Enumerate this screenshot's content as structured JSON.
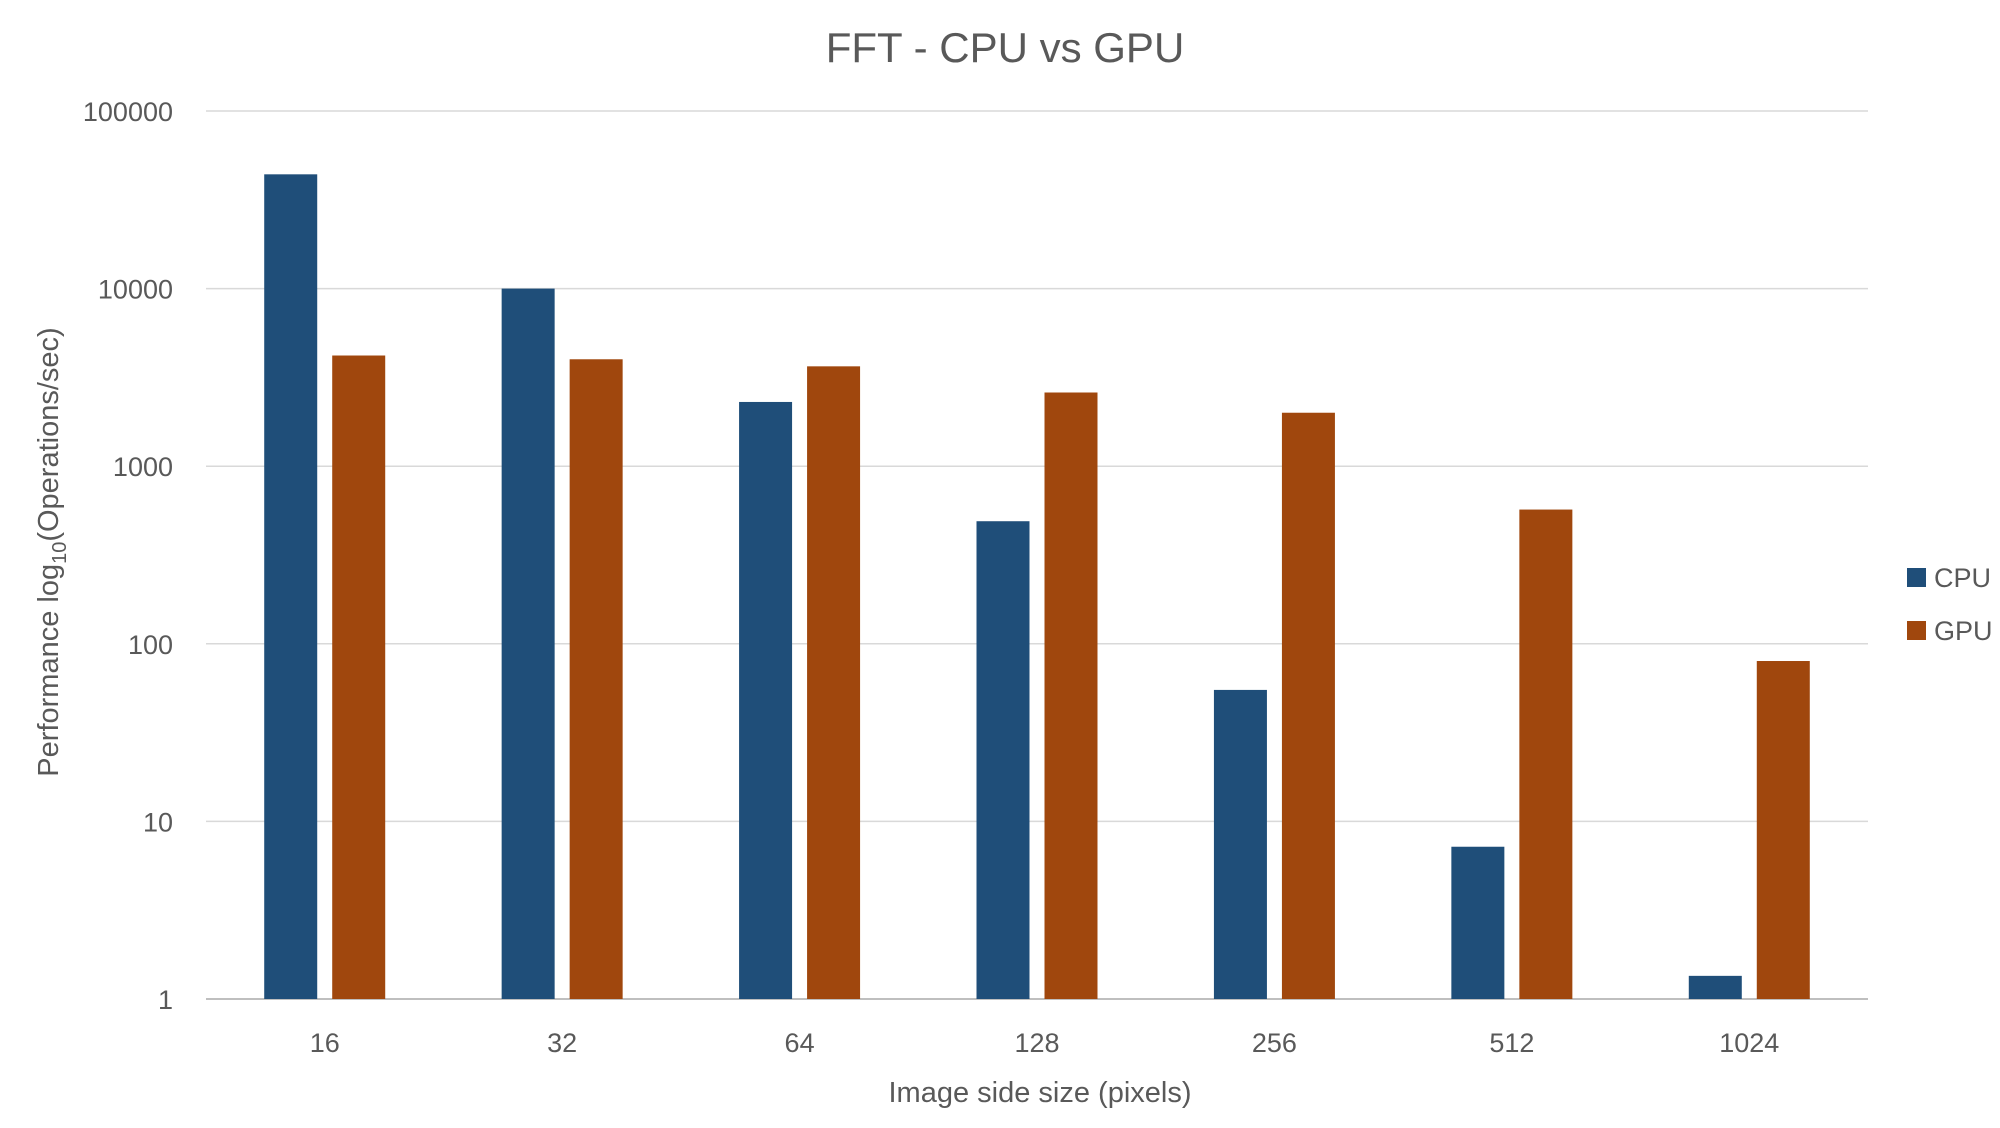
{
  "chart_data": {
    "type": "bar",
    "title": "FFT - CPU vs GPU",
    "xlabel": "Image side size (pixels)",
    "ylabel_prefix": "Performance log",
    "ylabel_subscript": "10",
    "ylabel_suffix": "(Operations/sec)",
    "yscale": "log",
    "ylim": [
      1,
      100000
    ],
    "yticks": [
      "1",
      "10",
      "100",
      "1000",
      "10000",
      "100000"
    ],
    "categories": [
      "16",
      "32",
      "64",
      "128",
      "256",
      "512",
      "1024"
    ],
    "series": [
      {
        "name": "CPU",
        "color": "#1f4e79",
        "values": [
          44000,
          10000,
          2300,
          490,
          55,
          7.2,
          1.35
        ]
      },
      {
        "name": "GPU",
        "color": "#a0470d",
        "values": [
          4200,
          4000,
          3650,
          2600,
          2000,
          570,
          80
        ]
      }
    ],
    "grid": true,
    "legend_position": "right"
  }
}
